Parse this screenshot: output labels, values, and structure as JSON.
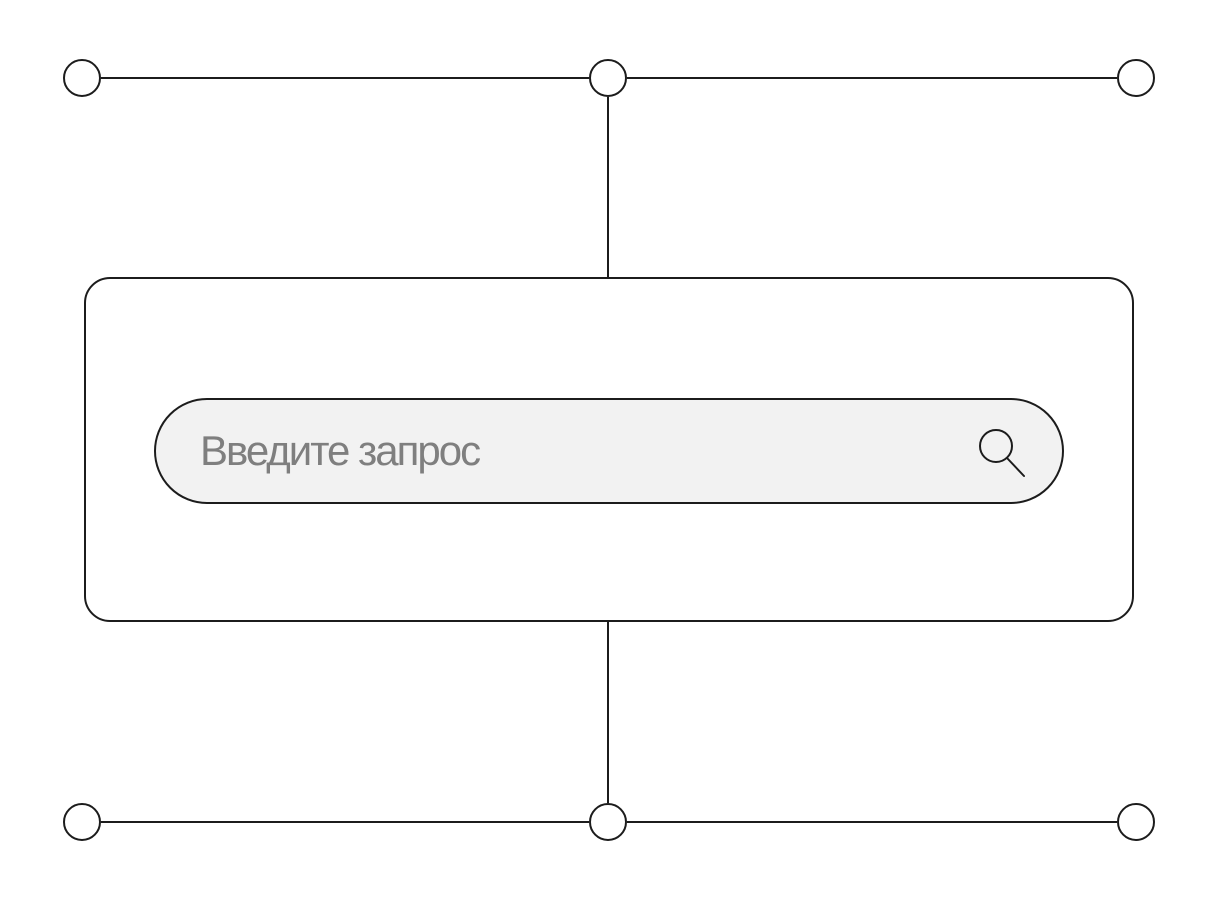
{
  "search": {
    "placeholder": "Введите запрос",
    "value": ""
  },
  "icons": {
    "search_button": "search-icon",
    "connector_nodes": "circle-node"
  },
  "colors": {
    "stroke": "#1c1c1c",
    "background": "#ffffff",
    "search_fill": "#f2f2f2",
    "placeholder": "#7f7f7f"
  }
}
